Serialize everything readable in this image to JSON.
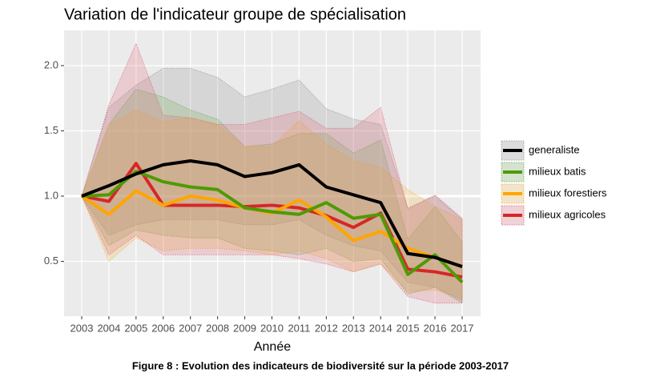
{
  "chart_data": {
    "type": "line",
    "title": "Variation de l'indicateur groupe de spécialisation",
    "x_label": "Année",
    "caption": "Figure 8 : Evolution des indicateurs de biodiversité sur la période 2003-2017",
    "categories": [
      "2003",
      "2004",
      "2005",
      "2006",
      "2007",
      "2008",
      "2009",
      "2010",
      "2011",
      "2012",
      "2013",
      "2014",
      "2015",
      "2016",
      "2017"
    ],
    "ylim": [
      0.08,
      2.27
    ],
    "yticks": [
      0.5,
      {
        "value": 1,
        "label": "1.0"
      },
      1.5,
      {
        "value": 2,
        "label": "2.0"
      }
    ],
    "reference_line": 1,
    "grid": true,
    "legend": "right",
    "series": [
      {
        "name": "generaliste",
        "color": "#000000",
        "band_color": "#8c8c8c",
        "values": [
          1.0,
          1.08,
          1.17,
          1.24,
          1.27,
          1.24,
          1.15,
          1.18,
          1.24,
          1.07,
          1.01,
          0.95,
          0.56,
          0.53,
          0.46
        ],
        "upper": [
          1.0,
          1.68,
          1.85,
          1.98,
          1.98,
          1.91,
          1.76,
          1.82,
          1.89,
          1.67,
          1.59,
          1.55,
          0.91,
          1.0,
          0.82
        ],
        "lower": [
          1.0,
          0.7,
          0.78,
          0.82,
          0.82,
          0.82,
          0.78,
          0.78,
          0.82,
          0.7,
          0.62,
          0.58,
          0.34,
          0.3,
          0.2
        ]
      },
      {
        "name": "milieux batis",
        "color": "#4e9a06",
        "band_color": "#6aa84f",
        "values": [
          1.0,
          1.01,
          1.19,
          1.11,
          1.07,
          1.05,
          0.91,
          0.88,
          0.86,
          0.95,
          0.83,
          0.86,
          0.4,
          0.55,
          0.34
        ],
        "upper": [
          1.0,
          1.55,
          1.82,
          1.76,
          1.66,
          1.59,
          1.38,
          1.4,
          1.48,
          1.48,
          1.33,
          1.43,
          0.67,
          0.92,
          0.65
        ],
        "lower": [
          1.0,
          0.62,
          0.74,
          0.7,
          0.68,
          0.68,
          0.6,
          0.58,
          0.55,
          0.6,
          0.5,
          0.52,
          0.25,
          0.3,
          0.18
        ]
      },
      {
        "name": "milieux forestiers",
        "color": "#ffa500",
        "band_color": "#f0b030",
        "values": [
          1.0,
          0.86,
          1.04,
          0.93,
          1.0,
          0.97,
          0.91,
          0.87,
          0.97,
          0.84,
          0.66,
          0.73,
          0.6,
          0.53,
          0.46
        ],
        "upper": [
          1.0,
          1.55,
          1.66,
          1.57,
          1.6,
          1.55,
          1.38,
          1.38,
          1.58,
          1.4,
          1.27,
          1.22,
          1.05,
          0.92,
          0.82
        ],
        "lower": [
          1.0,
          0.5,
          0.68,
          0.58,
          0.6,
          0.6,
          0.58,
          0.55,
          0.58,
          0.52,
          0.42,
          0.48,
          0.27,
          0.28,
          0.22
        ]
      },
      {
        "name": "milieux agricoles",
        "color": "#d62728",
        "band_color": "#e06070",
        "values": [
          1.0,
          0.96,
          1.25,
          0.93,
          0.93,
          0.93,
          0.92,
          0.93,
          0.91,
          0.85,
          0.76,
          0.87,
          0.44,
          0.42,
          0.38
        ],
        "upper": [
          1.0,
          1.7,
          2.17,
          1.62,
          1.6,
          1.55,
          1.55,
          1.6,
          1.65,
          1.52,
          1.52,
          1.68,
          0.9,
          1.01,
          0.83
        ],
        "lower": [
          1.0,
          0.55,
          0.7,
          0.55,
          0.55,
          0.55,
          0.55,
          0.55,
          0.52,
          0.48,
          0.42,
          0.48,
          0.23,
          0.18,
          0.18
        ]
      }
    ]
  }
}
